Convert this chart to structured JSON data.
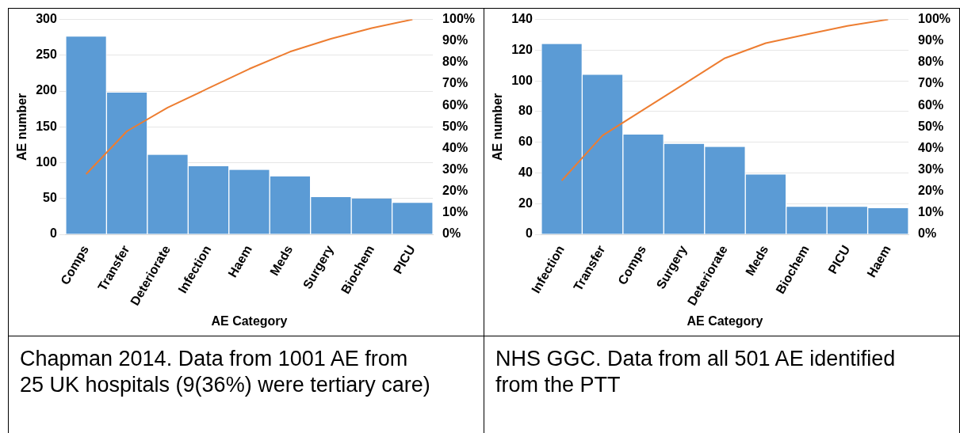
{
  "chart_data": [
    {
      "type": "bar",
      "ylabel": "AE number",
      "xlabel": "AE Category",
      "categories": [
        "Comps",
        "Transfer",
        "Deteriorate",
        "Infection",
        "Haem",
        "Meds",
        "Surgery",
        "Biochem",
        "PICU"
      ],
      "series": [
        {
          "color": "#5b9bd5",
          "values": [
            276,
            198,
            111,
            95,
            90,
            81,
            52,
            50,
            44
          ]
        },
        {
          "type": "line",
          "axis": "y2",
          "color": "#ed7d31",
          "values": [
            28,
            48,
            59,
            68,
            77,
            85,
            91,
            96,
            100
          ]
        }
      ],
      "ylim": [
        0,
        300
      ],
      "yticks": [
        0,
        50,
        100,
        150,
        200,
        250,
        300
      ],
      "y2lim": [
        0,
        100
      ],
      "y2ticks": [
        {
          "value": 0,
          "label": "0%"
        },
        {
          "value": 10,
          "label": "10%"
        },
        {
          "value": 20,
          "label": "20%"
        },
        {
          "value": 30,
          "label": "30%"
        },
        {
          "value": 40,
          "label": "40%"
        },
        {
          "value": 50,
          "label": "50%"
        },
        {
          "value": 60,
          "label": "60%"
        },
        {
          "value": 70,
          "label": "70%"
        },
        {
          "value": 80,
          "label": "80%"
        },
        {
          "value": 90,
          "label": "90%"
        },
        {
          "value": 100,
          "label": "100%"
        }
      ],
      "grid": "y",
      "marker": "none",
      "legend": false,
      "annotations": [
        "Chapman 2014. Data from 1001 AE from 25 UK hospitals (9(36%) were tertiary care)"
      ]
    },
    {
      "type": "bar",
      "ylabel": "AE number",
      "xlabel": "AE Category",
      "categories": [
        "Infection",
        "Transfer",
        "Comps",
        "Surgery",
        "Deteriorate",
        "Meds",
        "Biochem",
        "PICU",
        "Haem"
      ],
      "series": [
        {
          "color": "#5b9bd5",
          "values": [
            124,
            104,
            65,
            59,
            57,
            39,
            18,
            18,
            17
          ]
        },
        {
          "type": "line",
          "axis": "y2",
          "color": "#ed7d31",
          "values": [
            25,
            46,
            58,
            70,
            82,
            89,
            93,
            97,
            100
          ]
        }
      ],
      "ylim": [
        0,
        140
      ],
      "yticks": [
        0,
        20,
        40,
        60,
        80,
        100,
        120,
        140
      ],
      "y2lim": [
        0,
        100
      ],
      "y2ticks": [
        {
          "value": 0,
          "label": "0%"
        },
        {
          "value": 10,
          "label": "10%"
        },
        {
          "value": 20,
          "label": "20%"
        },
        {
          "value": 30,
          "label": "30%"
        },
        {
          "value": 40,
          "label": "40%"
        },
        {
          "value": 50,
          "label": "50%"
        },
        {
          "value": 60,
          "label": "60%"
        },
        {
          "value": 70,
          "label": "70%"
        },
        {
          "value": 80,
          "label": "80%"
        },
        {
          "value": 90,
          "label": "90%"
        },
        {
          "value": 100,
          "label": "100%"
        }
      ],
      "grid": "y",
      "marker": "none",
      "legend": false,
      "annotations": [
        "NHS GGC. Data from all 501 AE identified from the PTT"
      ]
    }
  ]
}
